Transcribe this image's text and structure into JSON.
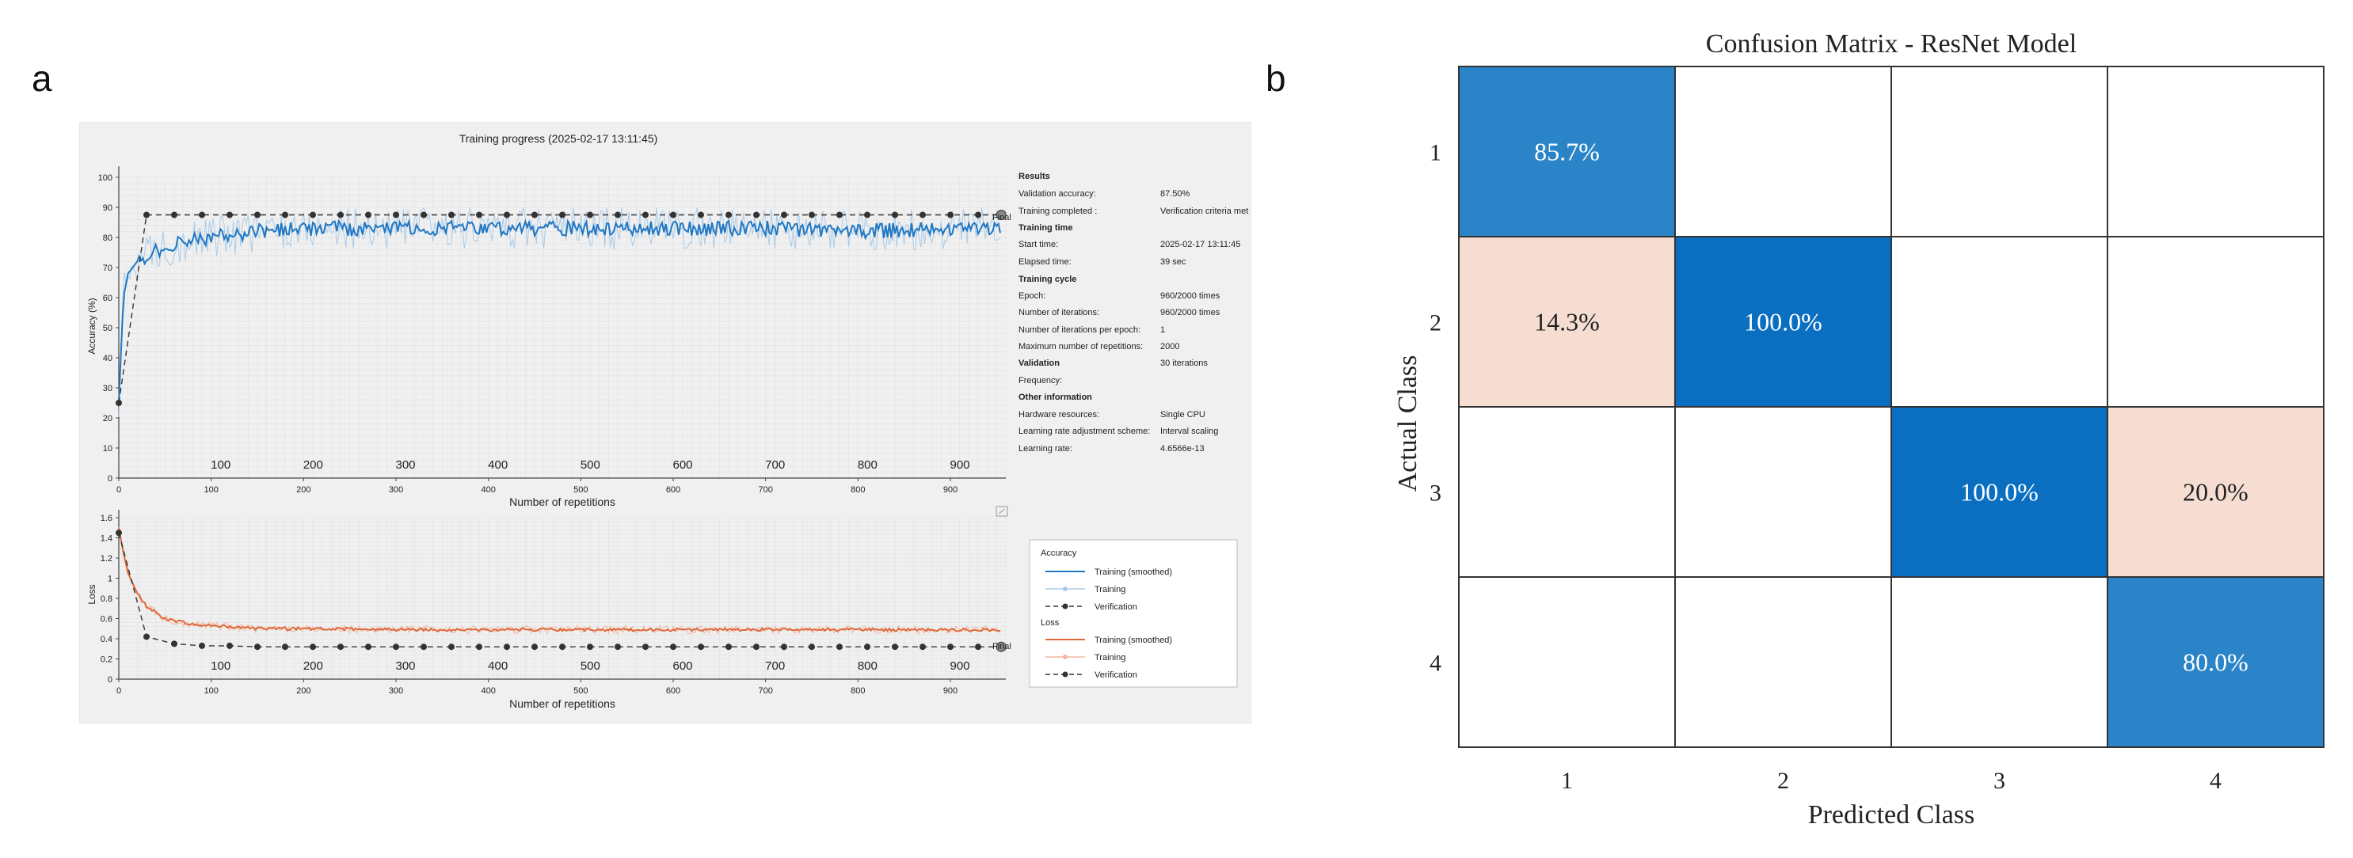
{
  "panels": {
    "a": "a",
    "b": "b"
  },
  "training": {
    "title": "Training progress (2025-02-17 13:11:45)",
    "results_label": "Results",
    "results": [
      {
        "label": "Validation accuracy:",
        "value": "87.50%"
      },
      {
        "label": "Training completed :",
        "value": "Verification criteria met"
      }
    ],
    "time_label": "Training time",
    "time": [
      {
        "label": "Start time:",
        "value": "2025-02-17 13:11:45"
      },
      {
        "label": "Elapsed time:",
        "value": "39 sec"
      }
    ],
    "cycle_label": "Training cycle",
    "cycle": [
      {
        "label": "Epoch:",
        "value": "960/2000 times"
      },
      {
        "label": "Number of iterations:",
        "value": "960/2000 times"
      },
      {
        "label": "Number of iterations per epoch:",
        "value": "1"
      },
      {
        "label": "Maximum number of repetitions:",
        "value": "2000"
      }
    ],
    "validation_label": "Validation",
    "validation": [
      {
        "label": "Frequency:",
        "value": "30 iterations"
      }
    ],
    "other_label": "Other information",
    "other": [
      {
        "label": "Hardware resources:",
        "value": "Single CPU"
      },
      {
        "label": "Learning rate adjustment scheme:",
        "value": "Interval scaling"
      },
      {
        "label": "Learning rate:",
        "value": "4.6566e-13"
      }
    ],
    "legend": {
      "acc_title": "Accuracy",
      "acc_items": [
        "Training (smoothed)",
        "Training",
        "Verification"
      ],
      "loss_title": "Loss",
      "loss_items": [
        "Training (smoothed)",
        "Training",
        "Verification"
      ]
    },
    "final_label": "Final",
    "colors": {
      "accuracy": "#1f77c4",
      "accuracy_raw": "#a9cbe8",
      "loss": "#e0683a",
      "loss_raw": "#f2b79d",
      "verification": "#333333"
    }
  },
  "chart_data": [
    {
      "type": "line",
      "title": "",
      "xlabel": "Number of repetitions",
      "ylabel": "Accuracy (%)",
      "xlim": [
        0,
        960
      ],
      "ylim": [
        0,
        100
      ],
      "xticks": [
        0,
        100,
        200,
        300,
        400,
        500,
        600,
        700,
        800,
        900
      ],
      "yticks": [
        0,
        10,
        20,
        30,
        40,
        50,
        60,
        70,
        80,
        90,
        100
      ],
      "series": [
        {
          "name": "Training (smoothed)",
          "x": [
            0,
            5,
            10,
            20,
            30,
            50,
            75,
            100,
            150,
            200,
            250,
            300,
            400,
            500,
            600,
            700,
            800,
            900,
            955
          ],
          "y": [
            25,
            60,
            68,
            72,
            74,
            77,
            79,
            80,
            82,
            83,
            83,
            83,
            83,
            83,
            83,
            83,
            82,
            83,
            83
          ]
        },
        {
          "name": "Verification",
          "x": [
            0,
            30,
            60,
            90,
            120,
            150,
            180,
            210,
            240,
            270,
            300,
            330,
            360,
            390,
            420,
            450,
            480,
            510,
            540,
            570,
            600,
            630,
            660,
            690,
            720,
            750,
            780,
            810,
            840,
            870,
            900,
            930,
            955
          ],
          "y": [
            25,
            87.5,
            87.5,
            87.5,
            87.5,
            87.5,
            87.5,
            87.5,
            87.5,
            87.5,
            87.5,
            87.5,
            87.5,
            87.5,
            87.5,
            87.5,
            87.5,
            87.5,
            87.5,
            87.5,
            87.5,
            87.5,
            87.5,
            87.5,
            87.5,
            87.5,
            87.5,
            87.5,
            87.5,
            87.5,
            87.5,
            87.5,
            87.5
          ]
        }
      ]
    },
    {
      "type": "line",
      "title": "",
      "xlabel": "Number of repetitions",
      "ylabel": "Loss",
      "xlim": [
        0,
        960
      ],
      "ylim": [
        0,
        1.6
      ],
      "xticks": [
        0,
        100,
        200,
        300,
        400,
        500,
        600,
        700,
        800,
        900
      ],
      "yticks": [
        0,
        0.2,
        0.4,
        0.6,
        0.8,
        1,
        1.2,
        1.4,
        1.6
      ],
      "series": [
        {
          "name": "Training (smoothed)",
          "x": [
            0,
            5,
            10,
            20,
            30,
            50,
            75,
            100,
            150,
            200,
            300,
            400,
            500,
            600,
            700,
            800,
            900,
            955
          ],
          "y": [
            1.5,
            1.25,
            1.05,
            0.85,
            0.72,
            0.6,
            0.55,
            0.53,
            0.5,
            0.5,
            0.49,
            0.49,
            0.49,
            0.49,
            0.49,
            0.49,
            0.49,
            0.49
          ]
        },
        {
          "name": "Verification",
          "x": [
            0,
            30,
            60,
            90,
            120,
            150,
            180,
            210,
            240,
            270,
            300,
            330,
            360,
            390,
            420,
            450,
            480,
            510,
            540,
            570,
            600,
            630,
            660,
            690,
            720,
            750,
            780,
            810,
            840,
            870,
            900,
            930,
            955
          ],
          "y": [
            1.45,
            0.42,
            0.35,
            0.33,
            0.33,
            0.32,
            0.32,
            0.32,
            0.32,
            0.32,
            0.32,
            0.32,
            0.32,
            0.32,
            0.32,
            0.32,
            0.32,
            0.32,
            0.32,
            0.32,
            0.32,
            0.32,
            0.32,
            0.32,
            0.32,
            0.32,
            0.32,
            0.32,
            0.32,
            0.32,
            0.32,
            0.32,
            0.32
          ]
        }
      ]
    },
    {
      "type": "heatmap",
      "title": "Confusion Matrix - ResNet Model",
      "xlabel": "Predicted Class",
      "ylabel": "Actual Class",
      "categories": [
        "1",
        "2",
        "3",
        "4"
      ],
      "cells": [
        [
          "85.7%",
          "",
          "",
          ""
        ],
        [
          "14.3%",
          "100.0%",
          "",
          ""
        ],
        [
          "",
          "",
          "100.0%",
          "20.0%"
        ],
        [
          "",
          "",
          "",
          "80.0%"
        ]
      ],
      "values": [
        [
          85.7,
          0,
          0,
          0
        ],
        [
          14.3,
          100,
          0,
          0
        ],
        [
          0,
          0,
          100,
          20
        ],
        [
          0,
          0,
          0,
          80
        ]
      ],
      "colors": {
        "diagonal_high": "#0b6fc1",
        "diagonal_mid": "#2b84c8",
        "off_diagonal": "#f5ddd1",
        "grid": "#333333"
      }
    }
  ]
}
